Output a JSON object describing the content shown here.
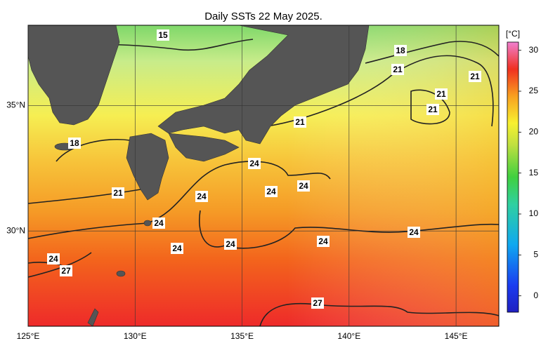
{
  "title": "Daily SSTs 22 May 2025.",
  "map": {
    "lonlim": [
      125,
      147
    ],
    "latlim": [
      26.2,
      38.2
    ],
    "lonticks": [
      {
        "value": 125,
        "label": "125°E"
      },
      {
        "value": 130,
        "label": "130°E"
      },
      {
        "value": 135,
        "label": "135°E"
      },
      {
        "value": 140,
        "label": "140°E"
      },
      {
        "value": 145,
        "label": "145°E"
      }
    ],
    "latticks": [
      {
        "value": 30,
        "label": "30°N"
      },
      {
        "value": 35,
        "label": "35°N"
      }
    ],
    "contour_labels": [
      15,
      18,
      21,
      21,
      21,
      21,
      21,
      18,
      24,
      24,
      24,
      21,
      24,
      24,
      24,
      24,
      24,
      24,
      24,
      27,
      27
    ]
  },
  "colorbar": {
    "unit": "[°C]",
    "lim": [
      -2,
      31
    ],
    "ticks": [
      0,
      5,
      10,
      15,
      20,
      25,
      30
    ]
  }
}
